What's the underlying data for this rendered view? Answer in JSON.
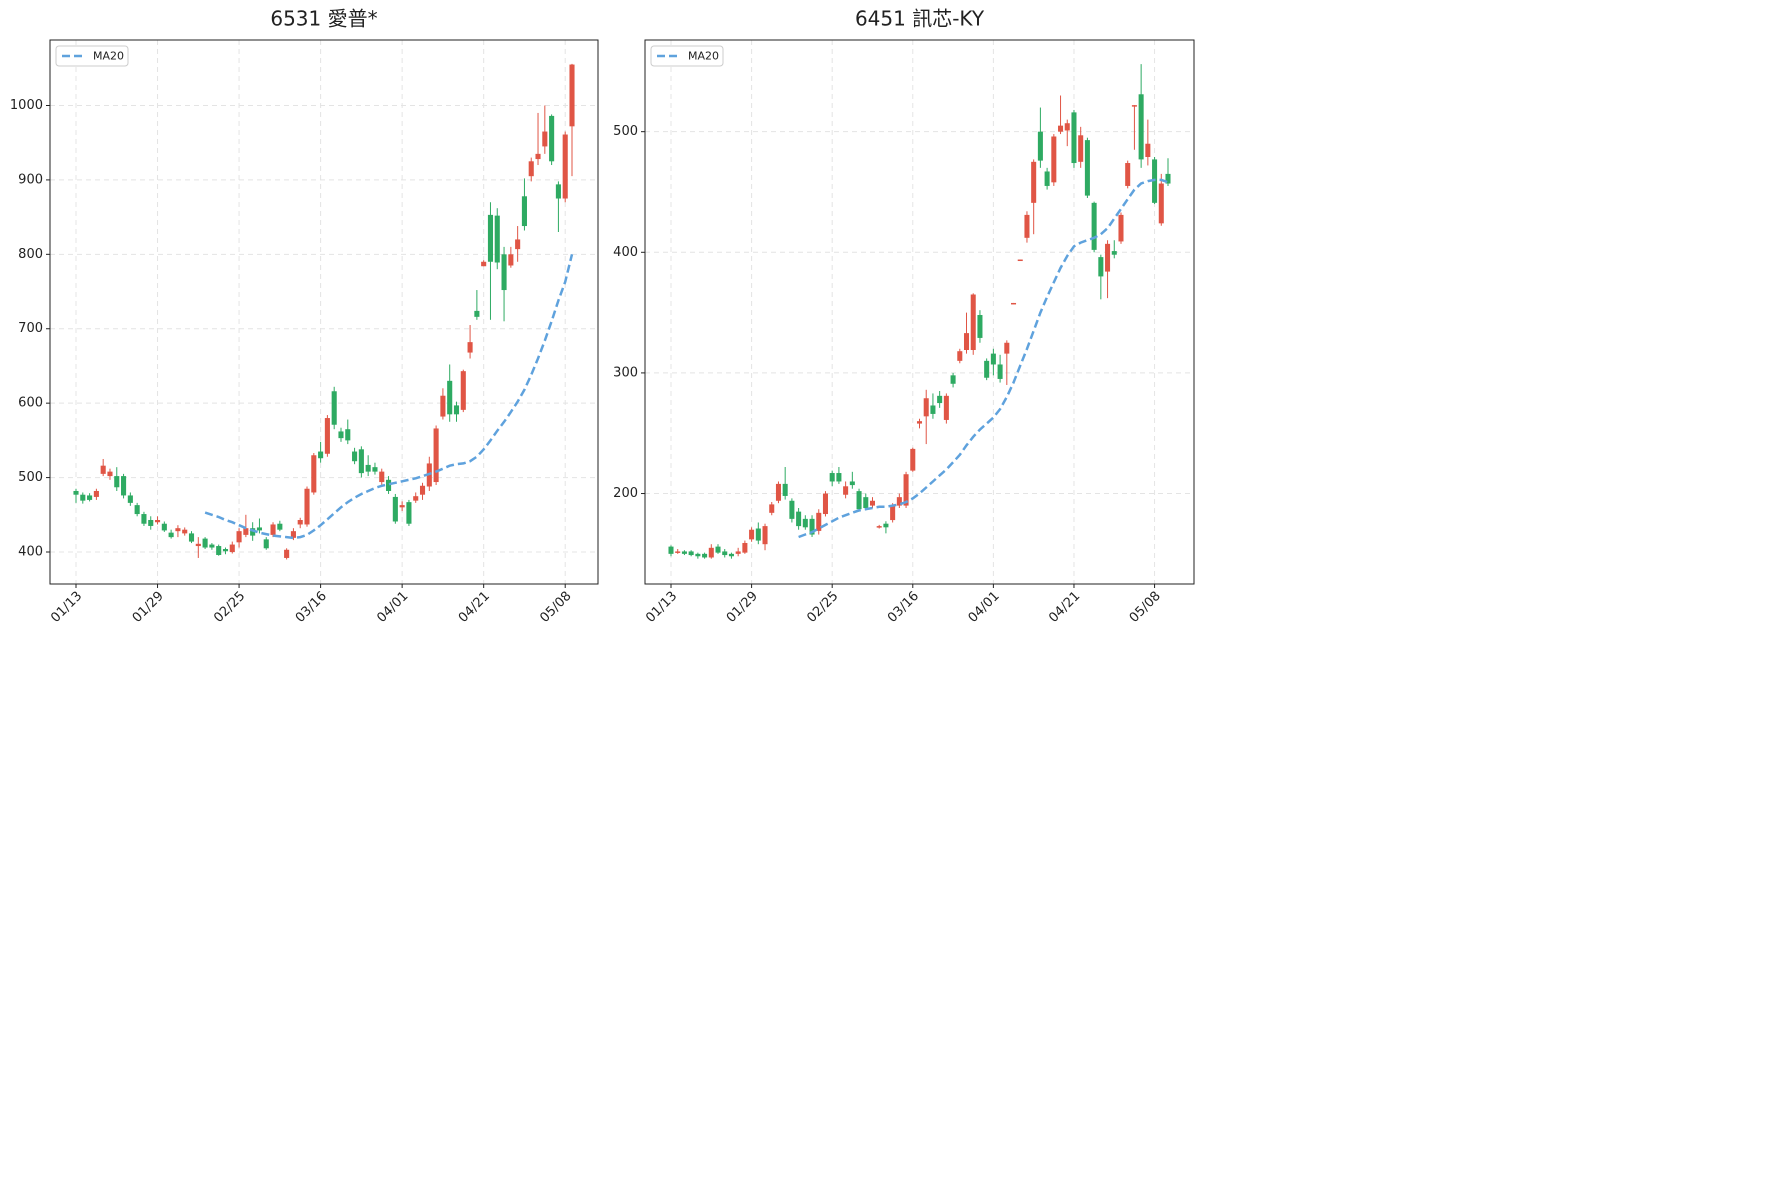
{
  "chart_data": [
    {
      "type": "candlestick",
      "title": "6531 愛普*",
      "categories": [
        "01/13",
        null,
        null,
        null,
        null,
        null,
        null,
        null,
        null,
        null,
        null,
        null,
        "01/29",
        null,
        null,
        null,
        null,
        null,
        null,
        null,
        null,
        null,
        null,
        null,
        "02/25",
        null,
        null,
        null,
        null,
        null,
        null,
        null,
        null,
        null,
        null,
        null,
        "03/16",
        null,
        null,
        null,
        null,
        null,
        null,
        null,
        null,
        null,
        null,
        null,
        "04/01",
        null,
        null,
        null,
        null,
        null,
        null,
        null,
        null,
        null,
        null,
        null,
        "04/21",
        null,
        null,
        null,
        null,
        null,
        null,
        null,
        null,
        null,
        null,
        null,
        "05/08",
        null
      ],
      "open": [
        482,
        477,
        476,
        474,
        505,
        502,
        502,
        502,
        476,
        463,
        451,
        443,
        440,
        438,
        426,
        428,
        425,
        425,
        408,
        418,
        410,
        408,
        404,
        400,
        413,
        423,
        432,
        433,
        417,
        423,
        438,
        392,
        419,
        437,
        437,
        480,
        535,
        532,
        616,
        562,
        565,
        535,
        538,
        517,
        514,
        494,
        497,
        474,
        460,
        467,
        469,
        477,
        488,
        494,
        582,
        630,
        597,
        591,
        668,
        724,
        784,
        853,
        852,
        800,
        785,
        807,
        878,
        905,
        928,
        945,
        986,
        894,
        875,
        972
      ],
      "high": [
        485,
        480,
        479,
        485,
        525,
        512,
        514,
        505,
        480,
        466,
        454,
        448,
        448,
        441,
        430,
        436,
        433,
        428,
        420,
        420,
        412,
        410,
        406,
        414,
        432,
        450,
        440,
        445,
        420,
        440,
        442,
        405,
        432,
        446,
        488,
        533,
        548,
        584,
        622,
        567,
        578,
        540,
        542,
        530,
        520,
        512,
        502,
        478,
        468,
        470,
        480,
        493,
        528,
        570,
        620,
        652,
        602,
        645,
        705,
        752,
        792,
        870,
        862,
        810,
        810,
        838,
        902,
        930,
        990,
        1000,
        988,
        898,
        965,
        1056
      ],
      "low": [
        466,
        465,
        468,
        470,
        502,
        497,
        482,
        472,
        462,
        448,
        435,
        430,
        437,
        427,
        418,
        420,
        422,
        412,
        392,
        404,
        403,
        395,
        397,
        398,
        406,
        420,
        415,
        425,
        403,
        420,
        428,
        390,
        416,
        432,
        434,
        477,
        520,
        528,
        565,
        548,
        545,
        518,
        500,
        502,
        504,
        490,
        478,
        438,
        455,
        435,
        466,
        470,
        482,
        490,
        578,
        575,
        575,
        588,
        660,
        712,
        784,
        712,
        780,
        710,
        782,
        790,
        832,
        898,
        920,
        935,
        920,
        830,
        870,
        905
      ],
      "close": [
        477,
        469,
        470,
        482,
        516,
        508,
        487,
        476,
        466,
        451,
        438,
        435,
        443,
        429,
        420,
        432,
        430,
        414,
        411,
        406,
        406,
        396,
        401,
        410,
        428,
        432,
        422,
        429,
        405,
        437,
        430,
        403,
        428,
        443,
        485,
        530,
        526,
        580,
        571,
        553,
        550,
        522,
        506,
        508,
        508,
        508,
        482,
        441,
        463,
        438,
        475,
        489,
        519,
        566,
        610,
        585,
        585,
        643,
        682,
        716,
        790,
        790,
        789,
        752,
        800,
        820,
        838,
        925,
        935,
        965,
        925,
        875,
        961,
        1055
      ],
      "series": [
        {
          "name": "MA20",
          "color": "#5fa2dd",
          "values": [
            null,
            null,
            null,
            null,
            null,
            null,
            null,
            null,
            null,
            null,
            null,
            null,
            null,
            null,
            null,
            null,
            null,
            null,
            null,
            453,
            450,
            447,
            443,
            440,
            436,
            432,
            429,
            426,
            424,
            422,
            421,
            420,
            419,
            420,
            423,
            429,
            436,
            444,
            452,
            460,
            467,
            473,
            478,
            482,
            486,
            489,
            491,
            493,
            495,
            497,
            499,
            502,
            505,
            508,
            512,
            516,
            518,
            519,
            522,
            528,
            538,
            550,
            563,
            575,
            588,
            602,
            618,
            638,
            660,
            684,
            710,
            738,
            763,
            800
          ]
        }
      ],
      "up_color": "#e05545",
      "down_color": "#2eaa62",
      "ylim": [
        357,
        1088
      ],
      "yticks": [
        400,
        500,
        600,
        700,
        800,
        900,
        1000
      ],
      "grid": true,
      "legend": "upper left"
    },
    {
      "type": "candlestick",
      "title": "6451 訊芯-KY",
      "categories": [
        "01/13",
        null,
        null,
        null,
        null,
        null,
        null,
        null,
        null,
        null,
        null,
        null,
        "01/29",
        null,
        null,
        null,
        null,
        null,
        null,
        null,
        null,
        null,
        null,
        null,
        "02/25",
        null,
        null,
        null,
        null,
        null,
        null,
        null,
        null,
        null,
        null,
        null,
        "03/16",
        null,
        null,
        null,
        null,
        null,
        null,
        null,
        null,
        null,
        null,
        null,
        "04/01",
        null,
        null,
        null,
        null,
        null,
        null,
        null,
        null,
        null,
        null,
        null,
        "04/21",
        null,
        null,
        null,
        null,
        null,
        null,
        null,
        null,
        null,
        null,
        null,
        "05/08",
        null,
        null
      ],
      "open": [
        156,
        151,
        152,
        152,
        150,
        150,
        147,
        156,
        152,
        150,
        150,
        151,
        162,
        171,
        158,
        184,
        194,
        208,
        194,
        185,
        179,
        179,
        169,
        183,
        217,
        217,
        199,
        210,
        202,
        197,
        190,
        172,
        175,
        178,
        190,
        190,
        219,
        258,
        264,
        273,
        281,
        261,
        298,
        310,
        319,
        319,
        348,
        310,
        316,
        307,
        316,
        357,
        393,
        412,
        441,
        500,
        467,
        458,
        500,
        501,
        516,
        475,
        493,
        441,
        396,
        384,
        401,
        409,
        455,
        521,
        531,
        479,
        477,
        424,
        465
      ],
      "high": [
        157,
        154,
        153,
        153,
        151,
        151,
        158,
        158,
        154,
        151,
        155,
        161,
        172,
        176,
        175,
        193,
        210,
        222,
        196,
        188,
        182,
        182,
        187,
        202,
        219,
        222,
        210,
        218,
        204,
        200,
        197,
        174,
        177,
        192,
        200,
        218,
        238,
        262,
        286,
        283,
        285,
        283,
        300,
        320,
        350,
        366,
        352,
        312,
        320,
        315,
        327,
        358,
        394,
        434,
        477,
        520,
        470,
        498,
        530,
        510,
        518,
        504,
        495,
        442,
        398,
        410,
        410,
        433,
        476,
        522,
        556,
        510,
        479,
        465,
        478
      ],
      "low": [
        148,
        150,
        149,
        148,
        146,
        146,
        146,
        150,
        147,
        146,
        148,
        150,
        160,
        158,
        153,
        182,
        192,
        195,
        176,
        170,
        170,
        164,
        166,
        181,
        206,
        208,
        196,
        204,
        185,
        186,
        188,
        171,
        167,
        176,
        188,
        188,
        218,
        254,
        241,
        262,
        271,
        258,
        288,
        308,
        316,
        315,
        325,
        294,
        298,
        292,
        290,
        357,
        393,
        408,
        415,
        470,
        452,
        455,
        498,
        488,
        470,
        470,
        445,
        400,
        361,
        362,
        395,
        407,
        453,
        485,
        470,
        472,
        440,
        422,
        455
      ],
      "close": [
        150,
        152,
        150,
        149,
        148,
        147,
        155,
        151,
        149,
        148,
        152,
        159,
        170,
        161,
        173,
        191,
        208,
        198,
        179,
        173,
        172,
        166,
        184,
        200,
        210,
        210,
        206,
        207,
        187,
        188,
        194,
        173,
        172,
        190,
        197,
        216,
        237,
        260,
        279,
        266,
        275,
        281,
        291,
        318,
        333,
        365,
        329,
        296,
        307,
        295,
        325,
        358,
        394,
        431,
        475,
        476,
        455,
        496,
        505,
        507,
        474,
        497,
        447,
        402,
        380,
        407,
        398,
        431,
        474,
        522,
        477,
        490,
        441,
        457,
        457
      ],
      "series": [
        {
          "name": "MA20",
          "color": "#5fa2dd",
          "values": [
            null,
            null,
            null,
            null,
            null,
            null,
            null,
            null,
            null,
            null,
            null,
            null,
            null,
            null,
            null,
            null,
            null,
            null,
            null,
            164,
            166,
            168,
            171,
            174,
            177,
            180,
            182,
            184,
            186,
            187,
            188,
            189,
            189,
            190,
            191,
            193,
            196,
            200,
            205,
            210,
            215,
            220,
            226,
            232,
            240,
            247,
            253,
            258,
            263,
            270,
            280,
            292,
            306,
            320,
            335,
            350,
            363,
            375,
            387,
            397,
            405,
            408,
            410,
            412,
            415,
            420,
            428,
            436,
            444,
            452,
            457,
            459,
            460,
            460,
            458
          ]
        }
      ],
      "up_color": "#e05545",
      "down_color": "#2eaa62",
      "ylim": [
        125,
        576
      ],
      "yticks": [
        200,
        300,
        400,
        500
      ],
      "grid": true,
      "legend": "upper left"
    }
  ]
}
